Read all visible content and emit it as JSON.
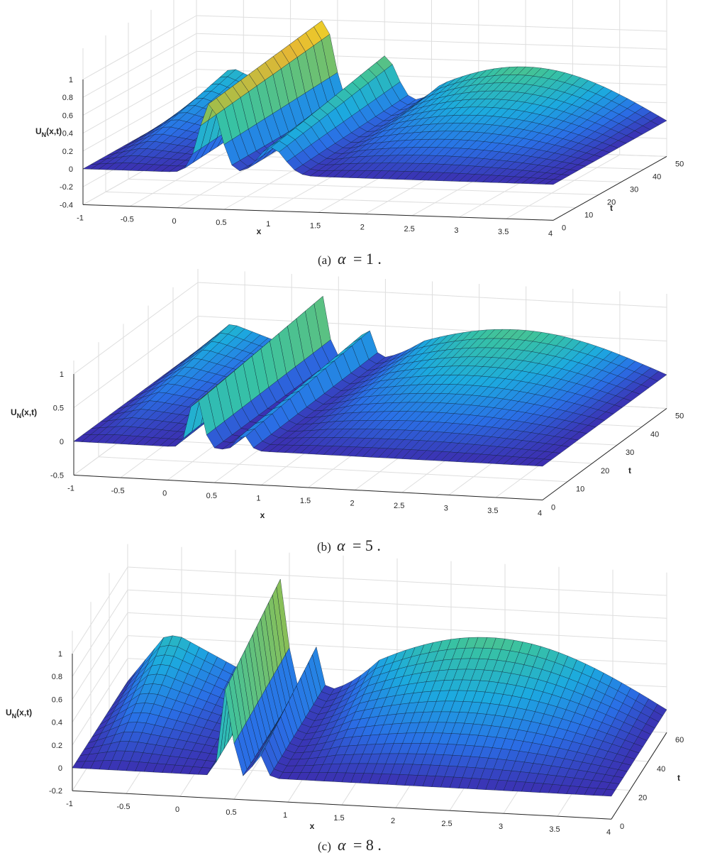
{
  "chart_data": [
    {
      "type": "surface",
      "caption_label": "(a)",
      "caption_symbol": "α",
      "caption_value": "= 1 .",
      "xlabel": "x",
      "ylabel": "t",
      "zlabel": "U",
      "zlabel_sub": "N",
      "zlabel_tail": "(x,t)",
      "x_ticks": [
        "-1",
        "-0.5",
        "0",
        "0.5",
        "1",
        "1.5",
        "2",
        "2.5",
        "3",
        "3.5",
        "4"
      ],
      "x_values": [
        -1,
        -0.5,
        0,
        0.5,
        1,
        1.5,
        2,
        2.5,
        3,
        3.5,
        4
      ],
      "t_ticks": [
        "0",
        "10",
        "20",
        "30",
        "40",
        "50"
      ],
      "t_values": [
        0,
        10,
        20,
        30,
        40,
        50
      ],
      "z_ticks": [
        "-0.4",
        "-0.2",
        "0",
        "0.2",
        "0.4",
        "0.6",
        "0.8",
        "1"
      ],
      "z_values": [
        -0.4,
        -0.2,
        0,
        0.2,
        0.4,
        0.6,
        0.8,
        1
      ],
      "xlim": [
        -1,
        4
      ],
      "tlim": [
        0,
        50
      ],
      "zlim": [
        -0.4,
        1
      ],
      "peak_value": 1,
      "colormap": [
        "#3e26a8",
        "#2a6fe6",
        "#1caadf",
        "#38c2a3",
        "#92bf4f",
        "#e6b734",
        "#f9fb15"
      ]
    },
    {
      "type": "surface",
      "caption_label": "(b)",
      "caption_symbol": "α",
      "caption_value": "= 5 .",
      "xlabel": "x",
      "ylabel": "t",
      "zlabel": "U",
      "zlabel_sub": "N",
      "zlabel_tail": "(x,t)",
      "x_ticks": [
        "-1",
        "-0.5",
        "0",
        "0.5",
        "1",
        "1.5",
        "2",
        "2.5",
        "3",
        "3.5",
        "4"
      ],
      "x_values": [
        -1,
        -0.5,
        0,
        0.5,
        1,
        1.5,
        2,
        2.5,
        3,
        3.5,
        4
      ],
      "t_ticks": [
        "0",
        "10",
        "20",
        "30",
        "40",
        "50"
      ],
      "t_values": [
        0,
        10,
        20,
        30,
        40,
        50
      ],
      "z_ticks": [
        "-0.5",
        "0",
        "0.5",
        "1"
      ],
      "z_values": [
        -0.5,
        0,
        0.5,
        1
      ],
      "xlim": [
        -1,
        4
      ],
      "tlim": [
        0,
        50
      ],
      "zlim": [
        -0.5,
        1
      ],
      "peak_value": 1,
      "colormap": [
        "#3e26a8",
        "#2a6fe6",
        "#1caadf",
        "#38c2a3",
        "#92bf4f",
        "#e6b734",
        "#f9fb15"
      ]
    },
    {
      "type": "surface",
      "caption_label": "(c)",
      "caption_symbol": "α",
      "caption_value": "= 8 .",
      "xlabel": "x",
      "ylabel": "t",
      "zlabel": "U",
      "zlabel_sub": "N",
      "zlabel_tail": "(x,t)",
      "x_ticks": [
        "-1",
        "-0.5",
        "0",
        "0.5",
        "1",
        "1.5",
        "2",
        "2.5",
        "3",
        "3.5",
        "4"
      ],
      "x_values": [
        -1,
        -0.5,
        0,
        0.5,
        1,
        1.5,
        2,
        2.5,
        3,
        3.5,
        4
      ],
      "t_ticks": [
        "0",
        "20",
        "40",
        "60"
      ],
      "t_values": [
        0,
        20,
        40,
        60
      ],
      "z_ticks": [
        "-0.2",
        "0",
        "0.2",
        "0.4",
        "0.6",
        "0.8",
        "1"
      ],
      "z_values": [
        -0.2,
        0,
        0.2,
        0.4,
        0.6,
        0.8,
        1
      ],
      "xlim": [
        -1,
        4
      ],
      "tlim": [
        0,
        60
      ],
      "zlim": [
        -0.2,
        1
      ],
      "peak_value": 1,
      "colormap": [
        "#3e26a8",
        "#2a6fe6",
        "#1caadf",
        "#38c2a3",
        "#92bf4f",
        "#e6b734",
        "#f9fb15"
      ]
    }
  ]
}
